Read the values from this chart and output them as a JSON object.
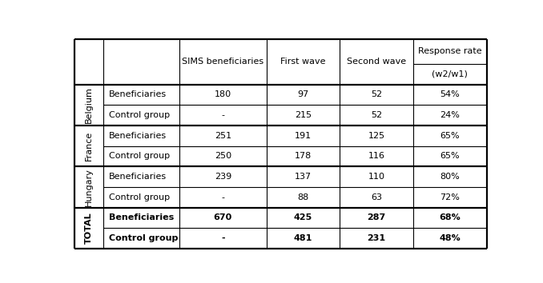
{
  "col_headers_main": [
    "SIMS beneficiaries",
    "First wave",
    "Second wave"
  ],
  "col_header_rr_top": "Response rate",
  "col_header_rr_bot": "(w2/w1)",
  "row_groups": [
    {
      "group_label": "Belgium",
      "group_bold": false,
      "rows": [
        {
          "label": "Beneficiaries",
          "values": [
            "180",
            "97",
            "52",
            "54%"
          ],
          "bold": false
        },
        {
          "label": "Control group",
          "values": [
            "-",
            "215",
            "52",
            "24%"
          ],
          "bold": false
        }
      ]
    },
    {
      "group_label": "France",
      "group_bold": false,
      "rows": [
        {
          "label": "Beneficiaries",
          "values": [
            "251",
            "191",
            "125",
            "65%"
          ],
          "bold": false
        },
        {
          "label": "Control group",
          "values": [
            "250",
            "178",
            "116",
            "65%"
          ],
          "bold": false
        }
      ]
    },
    {
      "group_label": "Hungary",
      "group_bold": false,
      "rows": [
        {
          "label": "Beneficiaries",
          "values": [
            "239",
            "137",
            "110",
            "80%"
          ],
          "bold": false
        },
        {
          "label": "Control group",
          "values": [
            "-",
            "88",
            "63",
            "72%"
          ],
          "bold": false
        }
      ]
    },
    {
      "group_label": "TOTAL",
      "group_bold": true,
      "rows": [
        {
          "label": "Beneficiaries",
          "values": [
            "670",
            "425",
            "287",
            "68%"
          ],
          "bold": true
        },
        {
          "label": "Control group",
          "values": [
            "-",
            "481",
            "231",
            "48%"
          ],
          "bold": true
        }
      ]
    }
  ],
  "background_color": "#ffffff",
  "line_color": "#000000",
  "font_size": 8.0,
  "header_font_size": 8.0
}
